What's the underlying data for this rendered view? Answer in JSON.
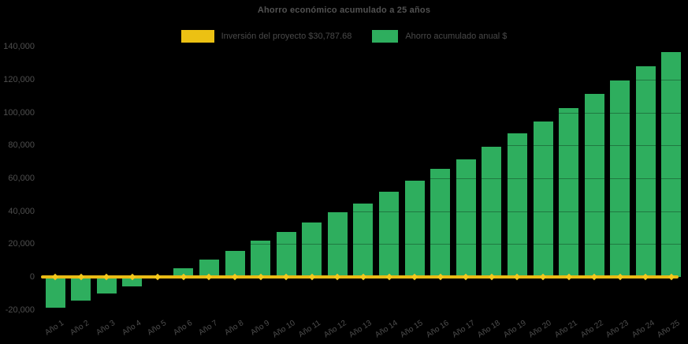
{
  "title": "Ahorro económico acumulado a 25 años",
  "legend": [
    {
      "label": "Inversión del proyecto $30,787.68",
      "color": "#ecc113",
      "swatch": "yellow-rect"
    },
    {
      "label": "Ahorro acumulado anual $",
      "color": "#2eae5e",
      "swatch": "green-rect"
    }
  ],
  "colors": {
    "background": "#000000",
    "bar_green": "#2eae5e",
    "line_yellow": "#e9bb15",
    "marker_yellow": "#f4c81c",
    "text_gray": "#4e4e4e",
    "gridline": "rgba(0,0,0,0.3)"
  },
  "chart_data": {
    "type": "bar",
    "title": "Ahorro económico acumulado a 25 años",
    "categories": [
      "Año 1",
      "Año 2",
      "Año 3",
      "Año 4",
      "Año 5",
      "Año 6",
      "Año 7",
      "Año 8",
      "Año 9",
      "Año 10",
      "Año 11",
      "Año 12",
      "Año 13",
      "Año 14",
      "Año 15",
      "Año 16",
      "Año 17",
      "Año 18",
      "Año 19",
      "Año 20",
      "Año 21",
      "Año 22",
      "Año 23",
      "Año 24",
      "Año 25"
    ],
    "series": [
      {
        "name": "Ahorro acumulado anual $",
        "type": "bar",
        "color": "#2eae5e",
        "values": [
          -18700,
          -14400,
          -9900,
          -5600,
          -300,
          5300,
          10500,
          16000,
          22000,
          27300,
          33100,
          39300,
          44800,
          52000,
          58500,
          65700,
          71600,
          79200,
          87300,
          94500,
          102800,
          111200,
          119500,
          128000,
          136700
        ]
      },
      {
        "name": "Inversión del proyecto $30,787.68",
        "type": "line",
        "color": "#e9bb15",
        "values": [
          0,
          0,
          0,
          0,
          0,
          0,
          0,
          0,
          0,
          0,
          0,
          0,
          0,
          0,
          0,
          0,
          0,
          0,
          0,
          0,
          0,
          0,
          0,
          0,
          0
        ]
      }
    ],
    "yticks": [
      140000,
      120000,
      100000,
      80000,
      60000,
      40000,
      20000,
      0,
      -20000
    ],
    "ylim": [
      -23500,
      142000
    ],
    "xlabel": "",
    "ylabel": "",
    "grid": "horizontal-dark",
    "legend_position": "top-center"
  }
}
